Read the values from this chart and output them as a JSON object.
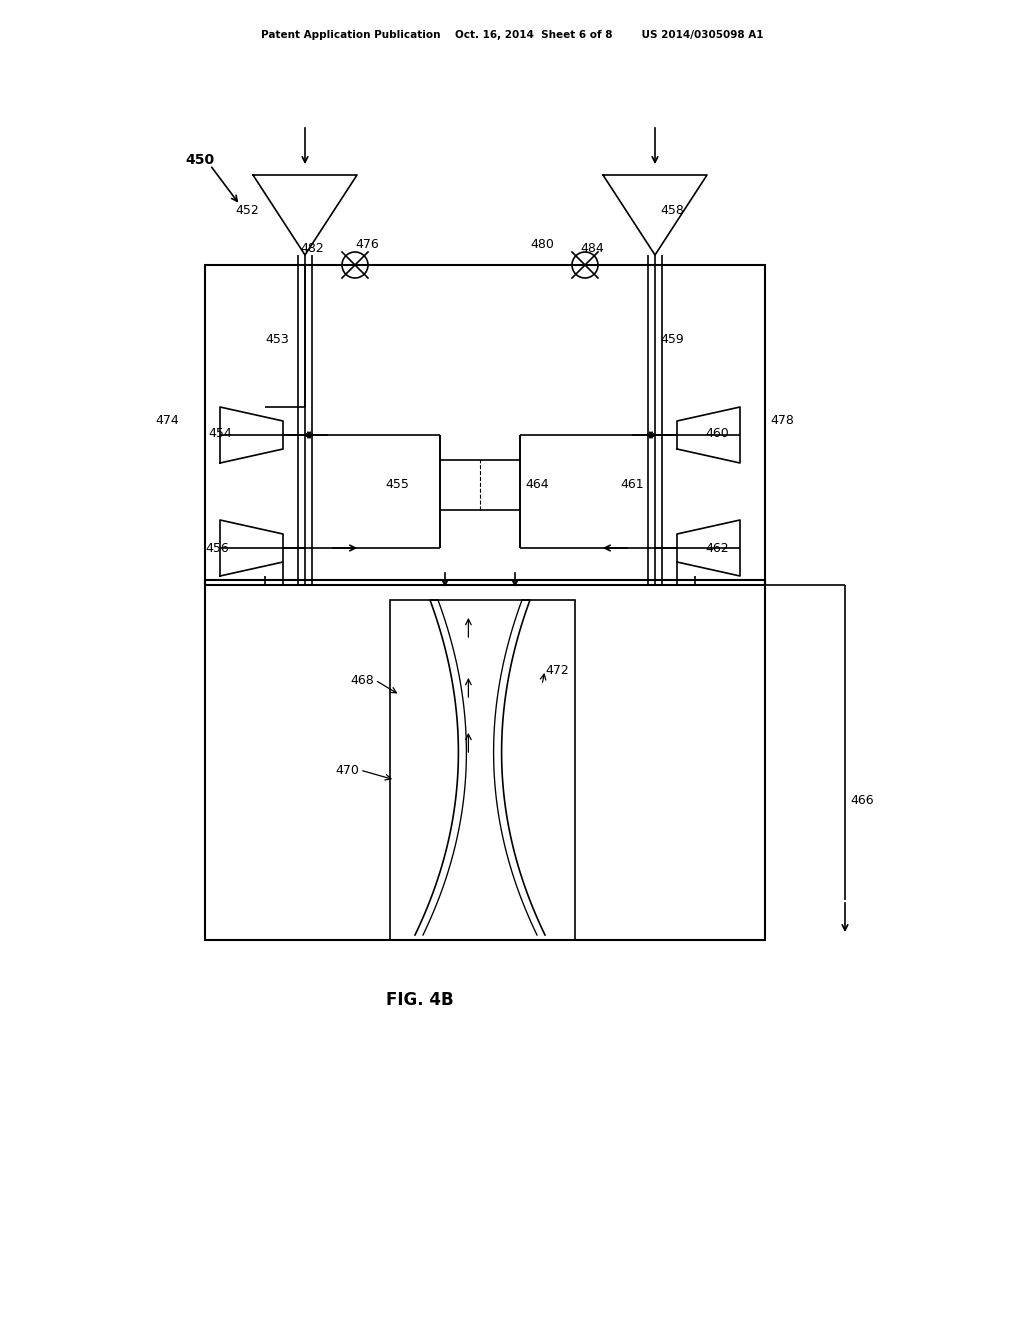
{
  "bg_color": "#ffffff",
  "line_color": "#000000",
  "fig_width": 10.24,
  "fig_height": 13.2,
  "header_text": "Patent Application Publication    Oct. 16, 2014  Sheet 6 of 8        US 2014/0305098 A1",
  "fig_label": "FIG. 4B",
  "label_450": "450",
  "label_452": "452",
  "label_453": "453",
  "label_454": "454",
  "label_455": "455",
  "label_456": "456",
  "label_458": "458",
  "label_459": "459",
  "label_460": "460",
  "label_461": "461",
  "label_462": "462",
  "label_464": "464",
  "label_466": "466",
  "label_468": "468",
  "label_470": "470",
  "label_472": "472",
  "label_474": "474",
  "label_476": "476",
  "label_478": "478",
  "label_480": "480",
  "label_482": "482",
  "label_484": "484"
}
